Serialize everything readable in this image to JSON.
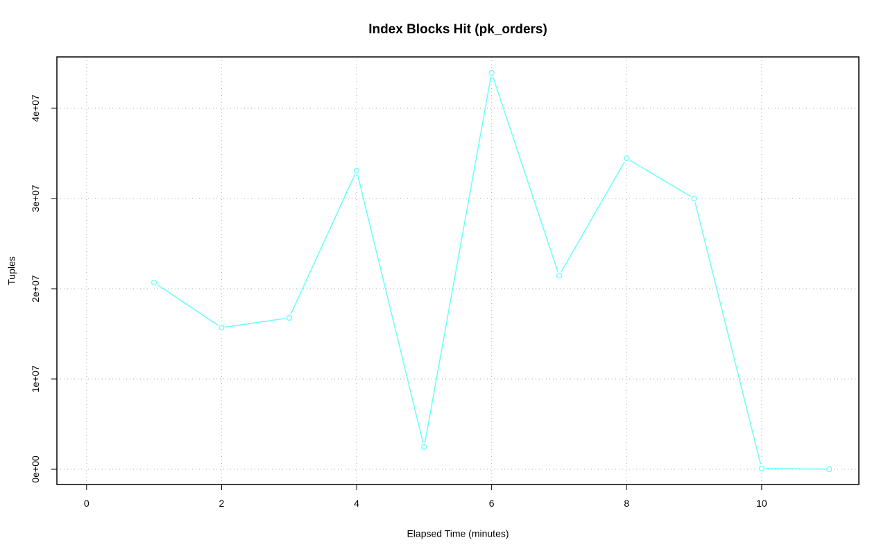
{
  "chart_data": {
    "type": "line",
    "title": "Index Blocks Hit (pk_orders)",
    "x_label": "Elapsed Time (minutes)",
    "y_label": "Tuples",
    "x": [
      1,
      2,
      3,
      4,
      5,
      6,
      7,
      8,
      9,
      10,
      11
    ],
    "series": [
      {
        "color": "#66ffff",
        "values": [
          20690000,
          15690000,
          16770000,
          33080000,
          2460000,
          43920000,
          21460000,
          34460000,
          30000000,
          100000,
          0
        ]
      }
    ],
    "xlim": [
      -0.44,
      11.44
    ],
    "xticks": [
      0,
      2,
      4,
      6,
      8,
      10
    ],
    "ylim": [
      -1690000,
      45690000
    ],
    "yticks": [
      {
        "value": 0,
        "label": "0e+00"
      },
      {
        "value": 10000000,
        "label": "1e+07"
      },
      {
        "value": 20000000,
        "label": "2e+07"
      },
      {
        "value": 30000000,
        "label": "3e+07"
      },
      {
        "value": 40000000,
        "label": "4e+07"
      }
    ],
    "grid": true
  }
}
